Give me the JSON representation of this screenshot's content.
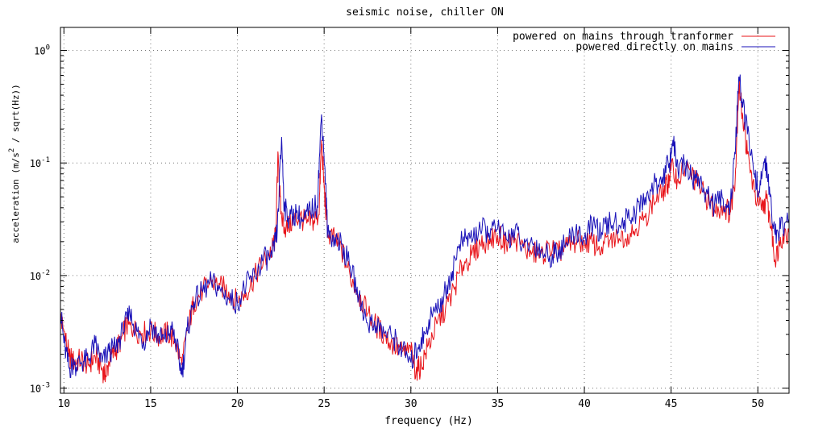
{
  "chart_data": {
    "type": "line",
    "title": "seismic noise, chiller ON",
    "xlabel": "frequency (Hz)",
    "ylabel": {
      "base": "acceleration (m/s",
      "sup": "2",
      "rest": " / sqrt(Hz))"
    },
    "xlim": [
      9.8,
      51.8
    ],
    "ylim": [
      0.0009,
      1.6
    ],
    "yscale": "log",
    "grid": true,
    "legend_position": "top-right",
    "x_ticks": [
      {
        "value": 10,
        "label": "10"
      },
      {
        "value": 15,
        "label": "15"
      },
      {
        "value": 20,
        "label": "20"
      },
      {
        "value": 25,
        "label": "25"
      },
      {
        "value": 30,
        "label": "30"
      },
      {
        "value": 35,
        "label": "35"
      },
      {
        "value": 40,
        "label": "40"
      },
      {
        "value": 45,
        "label": "45"
      },
      {
        "value": 50,
        "label": "50"
      }
    ],
    "y_ticks": [
      {
        "value": 0.001,
        "base": "10",
        "exp": "-3"
      },
      {
        "value": 0.01,
        "base": "10",
        "exp": "-2"
      },
      {
        "value": 0.1,
        "base": "10",
        "exp": "-1"
      },
      {
        "value": 1,
        "base": "10",
        "exp": "0"
      }
    ],
    "series": [
      {
        "name": "powered on mains through tranformer",
        "color": "#e8141a",
        "points": [
          [
            9.8,
            0.0042
          ],
          [
            10,
            0.0032
          ],
          [
            10.3,
            0.0019
          ],
          [
            10.6,
            0.0017
          ],
          [
            11,
            0.0018
          ],
          [
            11.4,
            0.0016
          ],
          [
            11.8,
            0.0019
          ],
          [
            12.2,
            0.0015
          ],
          [
            12.4,
            0.00125
          ],
          [
            12.6,
            0.0017
          ],
          [
            13,
            0.0022
          ],
          [
            13.3,
            0.0027
          ],
          [
            13.6,
            0.0036
          ],
          [
            14,
            0.0033
          ],
          [
            14.5,
            0.0031
          ],
          [
            15,
            0.0032
          ],
          [
            15.5,
            0.0029
          ],
          [
            16,
            0.0031
          ],
          [
            16.4,
            0.0026
          ],
          [
            16.8,
            0.0016
          ],
          [
            17.2,
            0.0037
          ],
          [
            17.5,
            0.0058
          ],
          [
            18,
            0.0074
          ],
          [
            18.5,
            0.0087
          ],
          [
            19,
            0.0082
          ],
          [
            19.5,
            0.0072
          ],
          [
            20,
            0.0058
          ],
          [
            20.5,
            0.0071
          ],
          [
            21,
            0.0098
          ],
          [
            21.5,
            0.0135
          ],
          [
            22,
            0.017
          ],
          [
            22.2,
            0.022
          ],
          [
            22.35,
            0.12
          ],
          [
            22.5,
            0.035
          ],
          [
            22.8,
            0.026
          ],
          [
            23.2,
            0.031
          ],
          [
            23.6,
            0.033
          ],
          [
            24,
            0.029
          ],
          [
            24.4,
            0.031
          ],
          [
            24.7,
            0.035
          ],
          [
            24.85,
            0.16
          ],
          [
            25,
            0.06
          ],
          [
            25.2,
            0.023
          ],
          [
            25.6,
            0.021
          ],
          [
            26,
            0.017
          ],
          [
            26.5,
            0.01
          ],
          [
            27,
            0.0068
          ],
          [
            27.5,
            0.0046
          ],
          [
            28,
            0.0036
          ],
          [
            28.5,
            0.0029
          ],
          [
            29,
            0.0024
          ],
          [
            29.5,
            0.0021
          ],
          [
            30,
            0.0021
          ],
          [
            30.3,
            0.0014
          ],
          [
            30.6,
            0.0016
          ],
          [
            31,
            0.0024
          ],
          [
            31.5,
            0.0037
          ],
          [
            32,
            0.0051
          ],
          [
            32.5,
            0.0076
          ],
          [
            33,
            0.0125
          ],
          [
            33.5,
            0.015
          ],
          [
            34,
            0.019
          ],
          [
            34.5,
            0.021
          ],
          [
            35,
            0.023
          ],
          [
            35.5,
            0.019
          ],
          [
            36,
            0.0215
          ],
          [
            36.5,
            0.0175
          ],
          [
            37,
            0.016
          ],
          [
            37.5,
            0.0155
          ],
          [
            38,
            0.017
          ],
          [
            38.5,
            0.016
          ],
          [
            39,
            0.018
          ],
          [
            39.5,
            0.0195
          ],
          [
            40,
            0.0205
          ],
          [
            40.5,
            0.019
          ],
          [
            41,
            0.018
          ],
          [
            41.5,
            0.021
          ],
          [
            42,
            0.0215
          ],
          [
            42.5,
            0.0235
          ],
          [
            43,
            0.026
          ],
          [
            43.5,
            0.033
          ],
          [
            44,
            0.046
          ],
          [
            44.5,
            0.052
          ],
          [
            44.8,
            0.065
          ],
          [
            45,
            0.09
          ],
          [
            45.4,
            0.072
          ],
          [
            45.8,
            0.09
          ],
          [
            46.2,
            0.078
          ],
          [
            46.6,
            0.062
          ],
          [
            47,
            0.05
          ],
          [
            47.5,
            0.038
          ],
          [
            48,
            0.042
          ],
          [
            48.4,
            0.036
          ],
          [
            48.7,
            0.075
          ],
          [
            48.9,
            0.5
          ],
          [
            49.1,
            0.28
          ],
          [
            49.4,
            0.12
          ],
          [
            49.8,
            0.055
          ],
          [
            50.2,
            0.038
          ],
          [
            50.5,
            0.048
          ],
          [
            50.8,
            0.025
          ],
          [
            51,
            0.013
          ],
          [
            51.3,
            0.022
          ],
          [
            51.8,
            0.024
          ]
        ]
      },
      {
        "name": "powered directly on mains",
        "color": "#1a12b8",
        "points": [
          [
            9.8,
            0.005
          ],
          [
            10,
            0.0025
          ],
          [
            10.3,
            0.0015
          ],
          [
            10.6,
            0.0016
          ],
          [
            11,
            0.0017
          ],
          [
            11.4,
            0.0018
          ],
          [
            11.8,
            0.0025
          ],
          [
            12.2,
            0.0017
          ],
          [
            12.6,
            0.0021
          ],
          [
            13,
            0.0023
          ],
          [
            13.4,
            0.0032
          ],
          [
            13.8,
            0.0046
          ],
          [
            14.2,
            0.0032
          ],
          [
            14.6,
            0.0026
          ],
          [
            15,
            0.0037
          ],
          [
            15.4,
            0.0029
          ],
          [
            15.8,
            0.0027
          ],
          [
            16.2,
            0.0033
          ],
          [
            16.5,
            0.0024
          ],
          [
            16.8,
            0.0013
          ],
          [
            17.1,
            0.0032
          ],
          [
            17.5,
            0.0059
          ],
          [
            18,
            0.0072
          ],
          [
            18.5,
            0.0088
          ],
          [
            19,
            0.0076
          ],
          [
            19.5,
            0.0062
          ],
          [
            20,
            0.0058
          ],
          [
            20.5,
            0.0082
          ],
          [
            21,
            0.01
          ],
          [
            21.5,
            0.014
          ],
          [
            22,
            0.0145
          ],
          [
            22.3,
            0.025
          ],
          [
            22.55,
            0.17
          ],
          [
            22.7,
            0.04
          ],
          [
            23,
            0.032
          ],
          [
            23.4,
            0.036
          ],
          [
            23.8,
            0.03
          ],
          [
            24.2,
            0.038
          ],
          [
            24.6,
            0.042
          ],
          [
            24.85,
            0.27
          ],
          [
            25.05,
            0.09
          ],
          [
            25.2,
            0.024
          ],
          [
            25.6,
            0.022
          ],
          [
            26,
            0.019
          ],
          [
            26.5,
            0.012
          ],
          [
            27,
            0.0065
          ],
          [
            27.5,
            0.0038
          ],
          [
            28,
            0.0036
          ],
          [
            28.5,
            0.0031
          ],
          [
            29,
            0.0028
          ],
          [
            29.5,
            0.0022
          ],
          [
            30,
            0.0017
          ],
          [
            30.4,
            0.0023
          ],
          [
            30.8,
            0.0031
          ],
          [
            31.2,
            0.0046
          ],
          [
            31.6,
            0.0052
          ],
          [
            32,
            0.0073
          ],
          [
            32.4,
            0.011
          ],
          [
            32.8,
            0.019
          ],
          [
            33.2,
            0.021
          ],
          [
            33.6,
            0.022
          ],
          [
            34,
            0.026
          ],
          [
            34.5,
            0.024
          ],
          [
            35,
            0.026
          ],
          [
            35.5,
            0.021
          ],
          [
            36,
            0.025
          ],
          [
            36.5,
            0.018
          ],
          [
            37,
            0.0195
          ],
          [
            37.5,
            0.017
          ],
          [
            38,
            0.015
          ],
          [
            38.5,
            0.017
          ],
          [
            39,
            0.019
          ],
          [
            39.5,
            0.025
          ],
          [
            40,
            0.0215
          ],
          [
            40.5,
            0.029
          ],
          [
            41,
            0.024
          ],
          [
            41.5,
            0.03
          ],
          [
            42,
            0.028
          ],
          [
            42.5,
            0.032
          ],
          [
            43,
            0.037
          ],
          [
            43.5,
            0.05
          ],
          [
            44,
            0.062
          ],
          [
            44.5,
            0.075
          ],
          [
            44.9,
            0.1
          ],
          [
            45.1,
            0.16
          ],
          [
            45.4,
            0.085
          ],
          [
            45.8,
            0.095
          ],
          [
            46.2,
            0.075
          ],
          [
            46.6,
            0.072
          ],
          [
            47,
            0.052
          ],
          [
            47.5,
            0.042
          ],
          [
            48,
            0.048
          ],
          [
            48.4,
            0.04
          ],
          [
            48.7,
            0.12
          ],
          [
            48.9,
            0.58
          ],
          [
            49.1,
            0.35
          ],
          [
            49.4,
            0.18
          ],
          [
            49.8,
            0.08
          ],
          [
            50.1,
            0.055
          ],
          [
            50.4,
            0.11
          ],
          [
            50.7,
            0.05
          ],
          [
            51,
            0.023
          ],
          [
            51.3,
            0.026
          ],
          [
            51.8,
            0.032
          ]
        ]
      }
    ]
  }
}
